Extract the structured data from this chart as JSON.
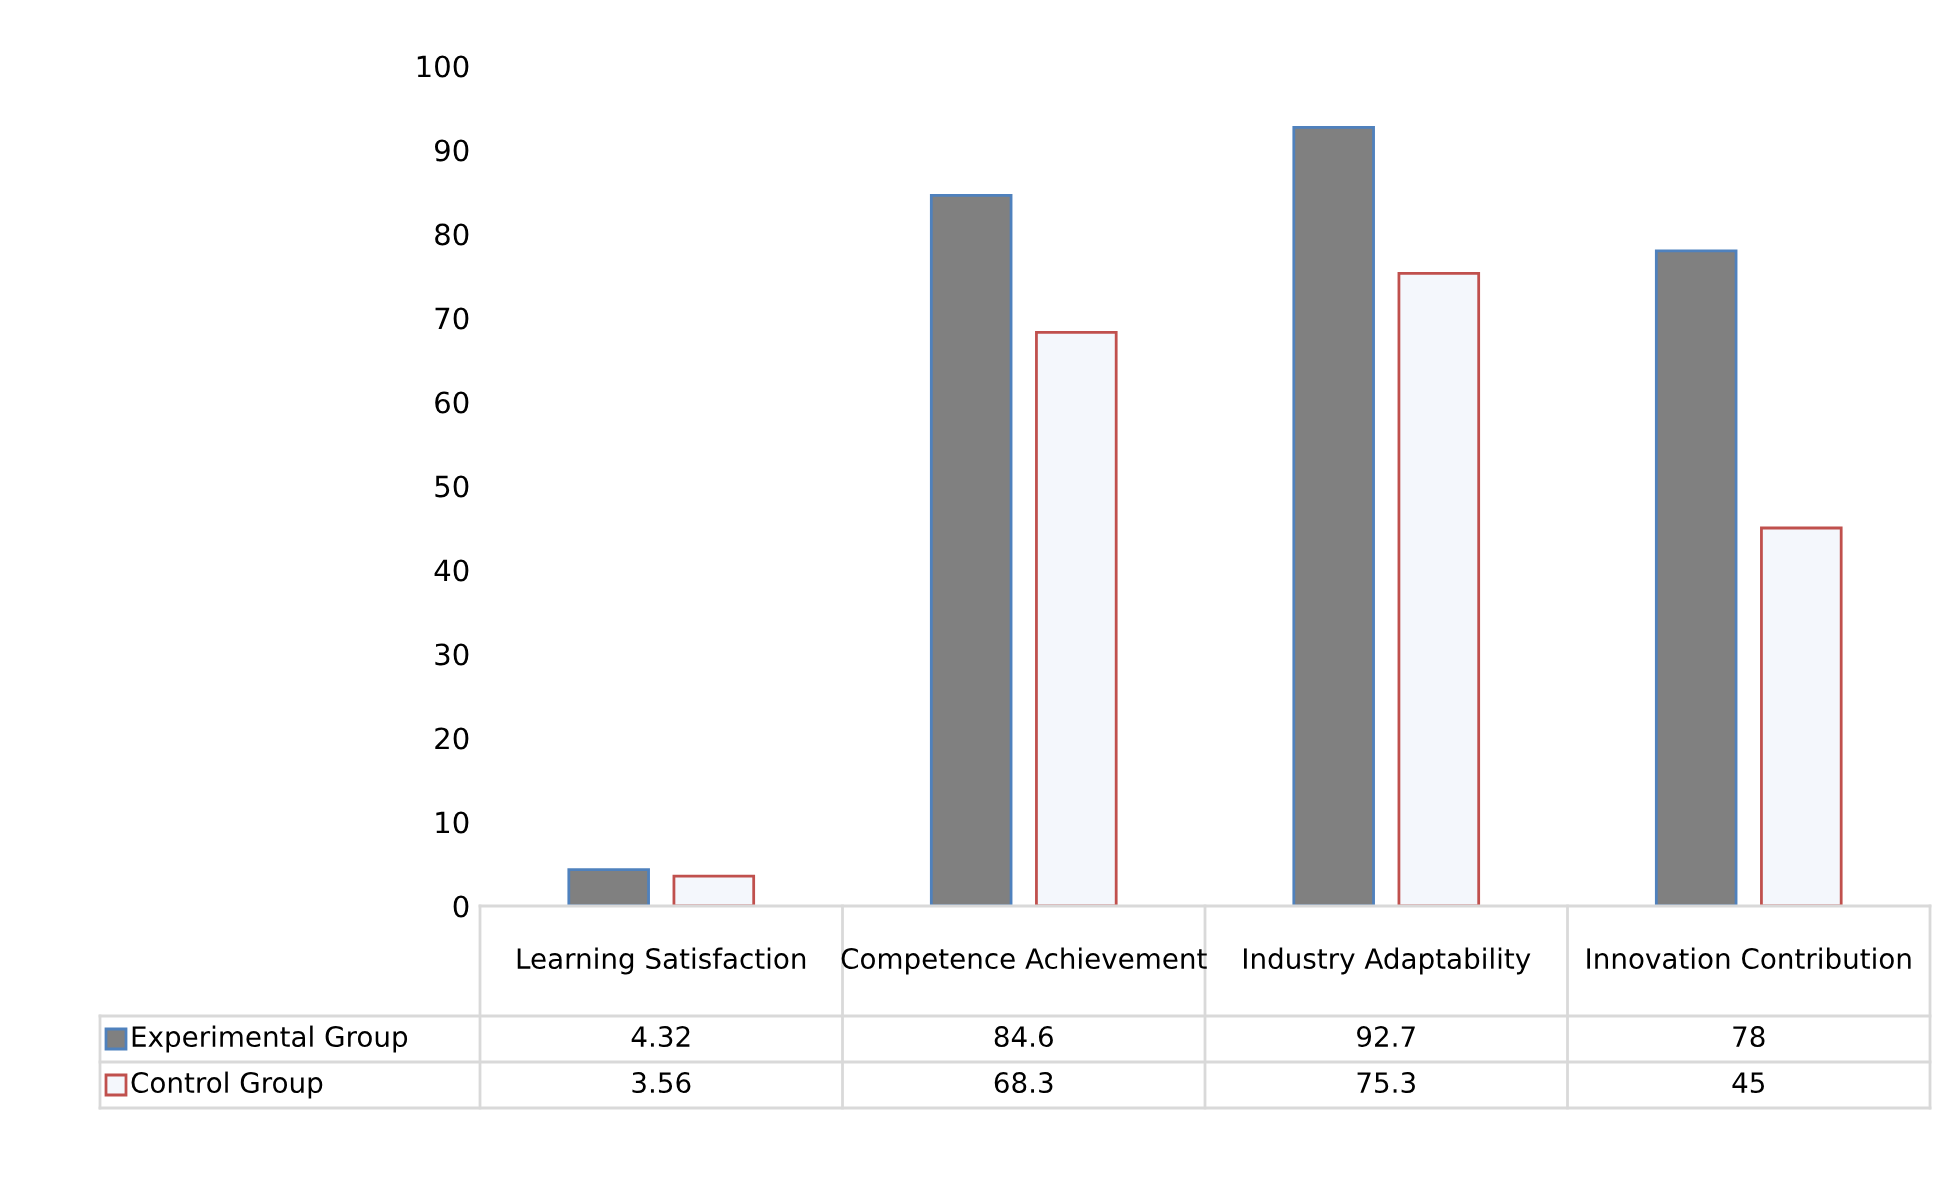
{
  "chart_data": {
    "type": "bar",
    "categories": [
      "Learning Satisfaction",
      "Competence Achievement",
      "Industry Adaptability",
      "Innovation Contribution"
    ],
    "series": [
      {
        "name": "Experimental Group",
        "color": "#808080",
        "values": [
          4.32,
          84.6,
          92.7,
          78
        ]
      },
      {
        "name": "Control Group",
        "color": "#f4f7fc",
        "values": [
          3.56,
          68.3,
          75.3,
          45
        ]
      }
    ],
    "ylim": [
      0,
      100
    ],
    "yticks": [
      0,
      10,
      20,
      30,
      40,
      50,
      60,
      70,
      80,
      90,
      100
    ],
    "grid": false,
    "legend": "bottom",
    "data_labels": true
  }
}
